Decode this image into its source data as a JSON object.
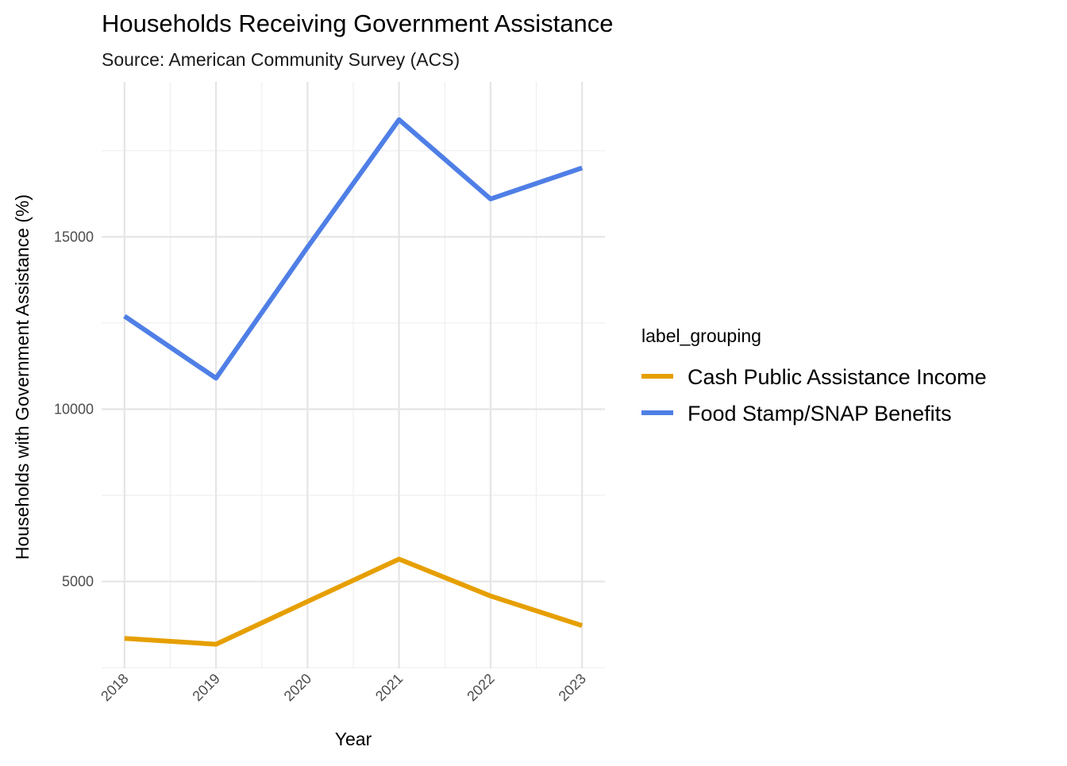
{
  "chart_data": {
    "type": "line",
    "title": "Households Receiving Government Assistance",
    "subtitle": "Source: American Community Survey (ACS)",
    "xlabel": "Year",
    "ylabel": "Households with Government Assistance (%)",
    "x": [
      2018,
      2019,
      2020,
      2021,
      2022,
      2023
    ],
    "x_tick_labels": [
      "2018",
      "2019",
      "2020",
      "2021",
      "2022",
      "2023"
    ],
    "y_ticks": [
      5000,
      10000,
      15000
    ],
    "y_tick_labels": [
      "5000",
      "10000",
      "15000"
    ],
    "xlim": [
      2017.75,
      2023.25
    ],
    "ylim": [
      2480,
      19500
    ],
    "grid": true,
    "legend": {
      "title": "label_grouping",
      "position": "right"
    },
    "series": [
      {
        "name": "Cash Public Assistance Income",
        "color": "#E69F00",
        "values": [
          3350,
          3180,
          4420,
          5650,
          4580,
          3720
        ]
      },
      {
        "name": "Food Stamp/SNAP Benefits",
        "color": "#4F7FE6",
        "values": [
          12700,
          10900,
          14700,
          18400,
          16100,
          17000
        ]
      }
    ]
  }
}
